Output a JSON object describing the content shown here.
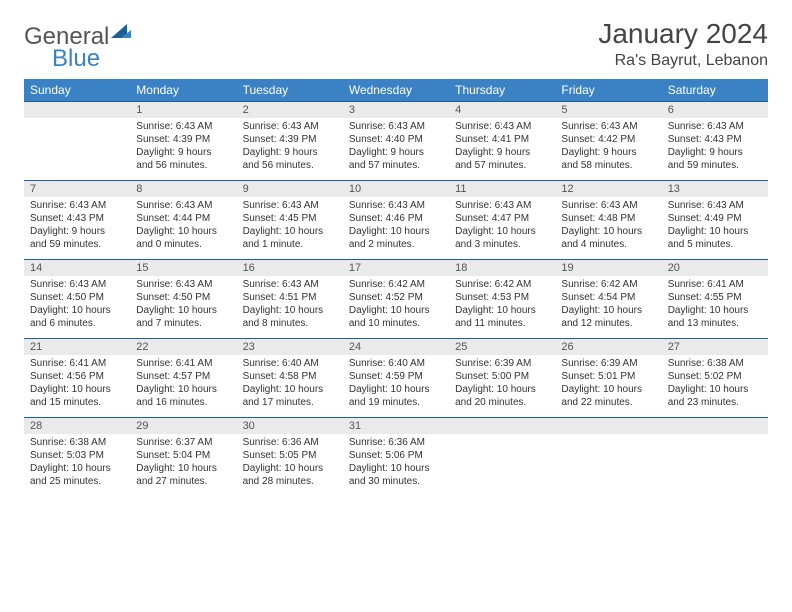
{
  "logo": {
    "word1": "General",
    "word2": "Blue"
  },
  "title": "January 2024",
  "location": "Ra's Bayrut, Lebanon",
  "colors": {
    "header_bg": "#3b82c4",
    "rule": "#1f5f99",
    "daynum_bg": "#eaeaea",
    "text": "#333333"
  },
  "weekdays": [
    "Sunday",
    "Monday",
    "Tuesday",
    "Wednesday",
    "Thursday",
    "Friday",
    "Saturday"
  ],
  "weeks": [
    [
      null,
      {
        "n": "1",
        "sr": "Sunrise: 6:43 AM",
        "ss": "Sunset: 4:39 PM",
        "dl": "Daylight: 9 hours and 56 minutes."
      },
      {
        "n": "2",
        "sr": "Sunrise: 6:43 AM",
        "ss": "Sunset: 4:39 PM",
        "dl": "Daylight: 9 hours and 56 minutes."
      },
      {
        "n": "3",
        "sr": "Sunrise: 6:43 AM",
        "ss": "Sunset: 4:40 PM",
        "dl": "Daylight: 9 hours and 57 minutes."
      },
      {
        "n": "4",
        "sr": "Sunrise: 6:43 AM",
        "ss": "Sunset: 4:41 PM",
        "dl": "Daylight: 9 hours and 57 minutes."
      },
      {
        "n": "5",
        "sr": "Sunrise: 6:43 AM",
        "ss": "Sunset: 4:42 PM",
        "dl": "Daylight: 9 hours and 58 minutes."
      },
      {
        "n": "6",
        "sr": "Sunrise: 6:43 AM",
        "ss": "Sunset: 4:43 PM",
        "dl": "Daylight: 9 hours and 59 minutes."
      }
    ],
    [
      {
        "n": "7",
        "sr": "Sunrise: 6:43 AM",
        "ss": "Sunset: 4:43 PM",
        "dl": "Daylight: 9 hours and 59 minutes."
      },
      {
        "n": "8",
        "sr": "Sunrise: 6:43 AM",
        "ss": "Sunset: 4:44 PM",
        "dl": "Daylight: 10 hours and 0 minutes."
      },
      {
        "n": "9",
        "sr": "Sunrise: 6:43 AM",
        "ss": "Sunset: 4:45 PM",
        "dl": "Daylight: 10 hours and 1 minute."
      },
      {
        "n": "10",
        "sr": "Sunrise: 6:43 AM",
        "ss": "Sunset: 4:46 PM",
        "dl": "Daylight: 10 hours and 2 minutes."
      },
      {
        "n": "11",
        "sr": "Sunrise: 6:43 AM",
        "ss": "Sunset: 4:47 PM",
        "dl": "Daylight: 10 hours and 3 minutes."
      },
      {
        "n": "12",
        "sr": "Sunrise: 6:43 AM",
        "ss": "Sunset: 4:48 PM",
        "dl": "Daylight: 10 hours and 4 minutes."
      },
      {
        "n": "13",
        "sr": "Sunrise: 6:43 AM",
        "ss": "Sunset: 4:49 PM",
        "dl": "Daylight: 10 hours and 5 minutes."
      }
    ],
    [
      {
        "n": "14",
        "sr": "Sunrise: 6:43 AM",
        "ss": "Sunset: 4:50 PM",
        "dl": "Daylight: 10 hours and 6 minutes."
      },
      {
        "n": "15",
        "sr": "Sunrise: 6:43 AM",
        "ss": "Sunset: 4:50 PM",
        "dl": "Daylight: 10 hours and 7 minutes."
      },
      {
        "n": "16",
        "sr": "Sunrise: 6:43 AM",
        "ss": "Sunset: 4:51 PM",
        "dl": "Daylight: 10 hours and 8 minutes."
      },
      {
        "n": "17",
        "sr": "Sunrise: 6:42 AM",
        "ss": "Sunset: 4:52 PM",
        "dl": "Daylight: 10 hours and 10 minutes."
      },
      {
        "n": "18",
        "sr": "Sunrise: 6:42 AM",
        "ss": "Sunset: 4:53 PM",
        "dl": "Daylight: 10 hours and 11 minutes."
      },
      {
        "n": "19",
        "sr": "Sunrise: 6:42 AM",
        "ss": "Sunset: 4:54 PM",
        "dl": "Daylight: 10 hours and 12 minutes."
      },
      {
        "n": "20",
        "sr": "Sunrise: 6:41 AM",
        "ss": "Sunset: 4:55 PM",
        "dl": "Daylight: 10 hours and 13 minutes."
      }
    ],
    [
      {
        "n": "21",
        "sr": "Sunrise: 6:41 AM",
        "ss": "Sunset: 4:56 PM",
        "dl": "Daylight: 10 hours and 15 minutes."
      },
      {
        "n": "22",
        "sr": "Sunrise: 6:41 AM",
        "ss": "Sunset: 4:57 PM",
        "dl": "Daylight: 10 hours and 16 minutes."
      },
      {
        "n": "23",
        "sr": "Sunrise: 6:40 AM",
        "ss": "Sunset: 4:58 PM",
        "dl": "Daylight: 10 hours and 17 minutes."
      },
      {
        "n": "24",
        "sr": "Sunrise: 6:40 AM",
        "ss": "Sunset: 4:59 PM",
        "dl": "Daylight: 10 hours and 19 minutes."
      },
      {
        "n": "25",
        "sr": "Sunrise: 6:39 AM",
        "ss": "Sunset: 5:00 PM",
        "dl": "Daylight: 10 hours and 20 minutes."
      },
      {
        "n": "26",
        "sr": "Sunrise: 6:39 AM",
        "ss": "Sunset: 5:01 PM",
        "dl": "Daylight: 10 hours and 22 minutes."
      },
      {
        "n": "27",
        "sr": "Sunrise: 6:38 AM",
        "ss": "Sunset: 5:02 PM",
        "dl": "Daylight: 10 hours and 23 minutes."
      }
    ],
    [
      {
        "n": "28",
        "sr": "Sunrise: 6:38 AM",
        "ss": "Sunset: 5:03 PM",
        "dl": "Daylight: 10 hours and 25 minutes."
      },
      {
        "n": "29",
        "sr": "Sunrise: 6:37 AM",
        "ss": "Sunset: 5:04 PM",
        "dl": "Daylight: 10 hours and 27 minutes."
      },
      {
        "n": "30",
        "sr": "Sunrise: 6:36 AM",
        "ss": "Sunset: 5:05 PM",
        "dl": "Daylight: 10 hours and 28 minutes."
      },
      {
        "n": "31",
        "sr": "Sunrise: 6:36 AM",
        "ss": "Sunset: 5:06 PM",
        "dl": "Daylight: 10 hours and 30 minutes."
      },
      null,
      null,
      null
    ]
  ]
}
